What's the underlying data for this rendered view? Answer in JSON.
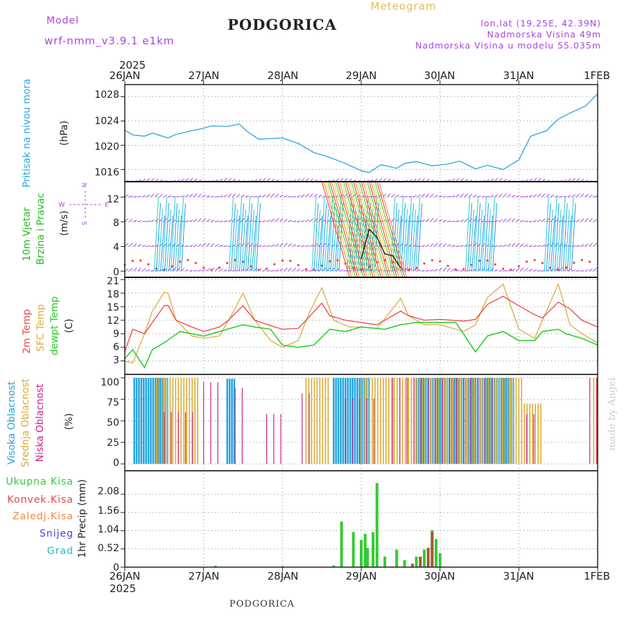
{
  "header": {
    "model_label": "Model",
    "model_name": "wrf-nmm_v3.9.1 e1km",
    "station": "PODGORICA",
    "kind": "Meteogram",
    "coords": "lon,lat (19.25E, 42.39N)",
    "elevation": "Nadmorska Visina 49m",
    "model_elevation": "Nadmorska Visina u modelu 55.035m",
    "footer_station": "PODGORICA",
    "credit": "made by Angel"
  },
  "time_axis": {
    "year": "2025",
    "ticks": [
      "26JAN",
      "27JAN",
      "28JAN",
      "29JAN",
      "30JAN",
      "31JAN",
      "1FEB"
    ]
  },
  "colors": {
    "pressure": "#29a6dd",
    "wind_label": "#22bb22",
    "t2m": "#ee4444",
    "sfc": "#ddaa44",
    "dew": "#22cc22",
    "high_cloud": "#22a4e0",
    "mid_cloud": "#ddaa33",
    "low_cloud": "#cc2288",
    "precip": "#33cc33",
    "conv": "#e04444",
    "frz": "#ee8844",
    "snow": "#4444dd",
    "grad": "#22bbbb",
    "purple": "#aa44dd"
  },
  "panels": {
    "pressure": {
      "labels": [
        "Pritisak na nivou mora",
        "(hPa)"
      ],
      "ticks": [
        "1016",
        "1020",
        "1024",
        "1028"
      ]
    },
    "wind": {
      "labels": [
        "10m Vjetar",
        "Brzina i Pravac",
        "(m/s)"
      ],
      "ticks": [
        "0",
        "4",
        "8",
        "12"
      ],
      "compass": [
        "N",
        "W",
        "E",
        "S"
      ]
    },
    "temperature": {
      "labels": [
        "2m Temp",
        "SFC Temp",
        "dewpt Temp",
        "(C)"
      ],
      "ticks": [
        "3",
        "6",
        "9",
        "12",
        "15",
        "18",
        "21"
      ]
    },
    "clouds": {
      "labels": [
        "Visoka Oblacnost",
        "Srednja Oblacnost",
        "Niska Oblacnost",
        "(%)"
      ],
      "ticks": [
        "0",
        "25",
        "50",
        "75",
        "100"
      ]
    },
    "precip": {
      "labels": [
        "Ukupna Kisa",
        "Konvek.Kisa",
        "Zaledj.Kisa",
        "Snijeg",
        "Grad",
        "1hr Precip (mm)"
      ],
      "ticks": [
        "0",
        "0.52",
        "1.04",
        "1.56",
        "2.08"
      ]
    }
  },
  "chart_data": [
    {
      "type": "line",
      "panel": "pressure",
      "ylim": [
        1014,
        1030
      ],
      "x_unit": "days after 26 Jan 2025 00 UTC",
      "series": [
        {
          "values_x": [
            0,
            0.1,
            0.25,
            0.35,
            0.55,
            0.65,
            0.85,
            1.0,
            1.1,
            1.3,
            1.45,
            1.55,
            1.7,
            2.0,
            2.2,
            2.4,
            2.6,
            2.8,
            3.0,
            3.1,
            3.25,
            3.45,
            3.55,
            3.7,
            3.9,
            4.1,
            4.25,
            4.45,
            4.6,
            4.8,
            5.0,
            5.15,
            5.35,
            5.5,
            5.65,
            5.85,
            6.0
          ],
          "values_y": [
            1022.5,
            1021.7,
            1021.5,
            1022.0,
            1021.2,
            1021.8,
            1022.4,
            1022.8,
            1023.2,
            1023.1,
            1023.5,
            1022.3,
            1021.0,
            1021.2,
            1020.3,
            1018.8,
            1018.0,
            1017.0,
            1015.8,
            1015.5,
            1016.8,
            1016.2,
            1017.0,
            1017.3,
            1016.6,
            1016.9,
            1017.4,
            1016.1,
            1016.7,
            1016.0,
            1017.6,
            1021.5,
            1022.4,
            1024.3,
            1025.3,
            1026.5,
            1028.5
          ]
        }
      ]
    },
    {
      "type": "line",
      "panel": "wind",
      "ylim": [
        -1,
        14.5
      ],
      "series": [
        {
          "values_x": [
            3.0,
            3.1,
            3.2,
            3.3,
            3.4,
            3.5
          ],
          "values_y": [
            2.0,
            6.8,
            5.5,
            2.8,
            2.5,
            0.5
          ]
        }
      ]
    },
    {
      "type": "line",
      "panel": "temperature",
      "ylim": [
        0,
        21.5
      ],
      "series": [
        {
          "name": "2m Temp",
          "values_x": [
            0,
            0.1,
            0.25,
            0.35,
            0.5,
            0.55,
            0.65,
            0.85,
            1.0,
            1.2,
            1.3,
            1.5,
            1.65,
            1.85,
            2.0,
            2.2,
            2.3,
            2.5,
            2.6,
            2.8,
            3.0,
            3.2,
            3.3,
            3.5,
            3.6,
            3.8,
            4.0,
            4.3,
            4.45,
            4.6,
            4.8,
            5.0,
            5.2,
            5.3,
            5.5,
            5.65,
            5.8,
            6.0
          ],
          "values_y": [
            5.0,
            10.0,
            9.0,
            11.5,
            15.2,
            15.3,
            12.0,
            10.5,
            9.5,
            10.5,
            11.8,
            15.2,
            12.0,
            10.8,
            10.0,
            10.2,
            12.0,
            15.8,
            13.0,
            12.0,
            11.5,
            11.0,
            12.0,
            14.0,
            13.0,
            12.0,
            12.2,
            11.8,
            12.2,
            15.5,
            17.3,
            15.2,
            13.2,
            12.5,
            16.0,
            14.5,
            12.0,
            10.5
          ]
        },
        {
          "name": "SFC Temp",
          "values_x": [
            0,
            0.1,
            0.25,
            0.35,
            0.5,
            0.55,
            0.65,
            0.85,
            1.0,
            1.2,
            1.35,
            1.5,
            1.65,
            1.85,
            2.0,
            2.2,
            2.35,
            2.5,
            2.65,
            2.85,
            3.0,
            3.2,
            3.35,
            3.5,
            3.6,
            3.8,
            4.0,
            4.3,
            4.45,
            4.6,
            4.8,
            5.0,
            5.2,
            5.35,
            5.5,
            5.65,
            5.8,
            6.0
          ],
          "values_y": [
            3.0,
            2.5,
            9.0,
            14.0,
            18.2,
            18.0,
            12.0,
            8.5,
            8.0,
            8.5,
            13.0,
            18.0,
            12.0,
            7.5,
            6.0,
            7.5,
            14.0,
            19.2,
            12.0,
            10.5,
            10.5,
            10.2,
            13.5,
            16.8,
            13.0,
            11.0,
            11.0,
            9.5,
            11.0,
            17.0,
            20.0,
            10.0,
            8.0,
            14.0,
            20.0,
            11.0,
            9.0,
            7.0
          ]
        },
        {
          "name": "dewpt Temp",
          "values_x": [
            0,
            0.1,
            0.25,
            0.35,
            0.5,
            0.7,
            1.0,
            1.3,
            1.5,
            1.65,
            1.85,
            2.0,
            2.2,
            2.4,
            2.6,
            2.8,
            3.0,
            3.3,
            3.5,
            3.7,
            4.0,
            4.2,
            4.45,
            4.6,
            4.8,
            5.0,
            5.2,
            5.3,
            5.5,
            5.6,
            5.8,
            6.0
          ],
          "values_y": [
            3.5,
            5.5,
            1.5,
            5.5,
            7.0,
            9.5,
            8.5,
            10.0,
            11.0,
            10.5,
            10.0,
            6.5,
            6.0,
            6.5,
            10.0,
            9.5,
            10.5,
            10.0,
            11.0,
            11.5,
            11.5,
            11.5,
            5.0,
            8.5,
            9.5,
            7.5,
            7.5,
            9.5,
            10.0,
            9.0,
            8.0,
            6.5
          ]
        }
      ]
    },
    {
      "type": "bar",
      "panel": "clouds",
      "ylim": [
        -8,
        104
      ],
      "series": [
        {
          "name": "Visoka Oblacnost",
          "values": [
            [
              0.12,
              0.55,
              100
            ],
            [
              1.3,
              1.4,
              99
            ],
            [
              2.65,
              3.1,
              100
            ],
            [
              3.7,
              4.95,
              100
            ]
          ]
        },
        {
          "name": "Srednja Oblacnost",
          "values": [
            [
              0.4,
              0.95,
              100
            ],
            [
              2.3,
              2.6,
              100
            ],
            [
              3.0,
              3.6,
              100
            ],
            [
              3.6,
              5.05,
              100
            ],
            [
              5.0,
              5.3,
              70
            ],
            [
              5.95,
              6.0,
              100
            ]
          ]
        },
        {
          "name": "Niska Oblacnost",
          "values": [
            [
              0.5,
              0.9,
              60
            ],
            [
              1.0,
              1.2,
              95
            ],
            [
              1.4,
              1.55,
              88
            ],
            [
              1.8,
              2.0,
              58
            ],
            [
              2.25,
              2.4,
              82
            ],
            [
              2.8,
              3.2,
              76
            ],
            [
              3.4,
              4.7,
              100
            ],
            [
              5.1,
              5.25,
              58
            ],
            [
              5.9,
              6.0,
              100
            ]
          ]
        }
      ]
    },
    {
      "type": "bar",
      "panel": "precip",
      "ylim": [
        0,
        2.75
      ],
      "series": [
        {
          "name": "Ukupna Kisa",
          "values": [
            [
              1.15,
              0.04
            ],
            [
              2.0,
              0.03
            ],
            [
              2.65,
              0.05
            ],
            [
              2.75,
              1.3
            ],
            [
              2.9,
              1.0
            ],
            [
              3.0,
              0.78
            ],
            [
              3.05,
              0.95
            ],
            [
              3.08,
              0.55
            ],
            [
              3.15,
              1.0
            ],
            [
              3.2,
              2.4
            ],
            [
              3.3,
              0.3
            ],
            [
              3.45,
              0.5
            ],
            [
              3.55,
              0.2
            ],
            [
              3.7,
              0.3
            ],
            [
              3.8,
              0.5
            ],
            [
              3.9,
              1.05
            ],
            [
              3.95,
              0.8
            ],
            [
              4.0,
              0.4
            ]
          ]
        },
        {
          "name": "Konvek.Kisa",
          "values": [
            [
              3.65,
              0.1
            ],
            [
              3.75,
              0.3
            ],
            [
              3.85,
              0.55
            ],
            [
              3.9,
              1.0
            ]
          ]
        }
      ]
    }
  ]
}
